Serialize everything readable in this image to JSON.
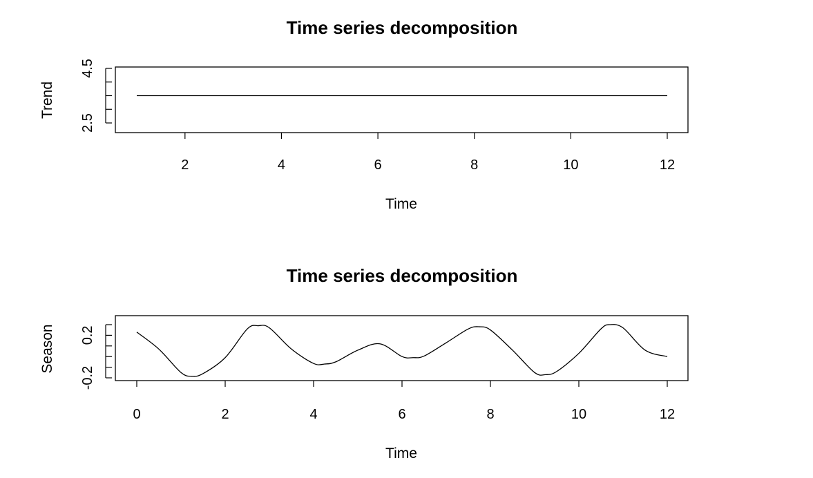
{
  "chart_data": [
    {
      "type": "line",
      "title": "Time series decomposition",
      "xlabel": "Time",
      "ylabel": "Trend",
      "xlim": [
        1,
        12
      ],
      "ylim": [
        2.0,
        5.0
      ],
      "xticks": [
        2,
        4,
        6,
        8,
        10,
        12
      ],
      "yticks": [
        2.5,
        3.0,
        3.5,
        4.0,
        4.5
      ],
      "ytick_labels": [
        "2.5",
        "",
        "",
        "",
        "4.5"
      ],
      "grid": false,
      "series": [
        {
          "x": [
            1,
            2,
            3,
            4,
            5,
            6,
            7,
            8,
            9,
            10,
            11,
            12
          ],
          "values": [
            3.5,
            3.5,
            3.5,
            3.5,
            3.5,
            3.5,
            3.5,
            3.5,
            3.5,
            3.5,
            3.5,
            3.5
          ]
        }
      ]
    },
    {
      "type": "line",
      "title": "Time series decomposition",
      "xlabel": "Time",
      "ylabel": "Season",
      "xlim": [
        0,
        12
      ],
      "ylim": [
        -0.3,
        0.3
      ],
      "xticks": [
        0,
        2,
        4,
        6,
        8,
        10,
        12
      ],
      "yticks": [
        -0.2,
        -0.1,
        0.0,
        0.1,
        0.2,
        0.3
      ],
      "ytick_labels": [
        "-0.2",
        "",
        "",
        "",
        "0.2",
        ""
      ],
      "grid": false,
      "series": [
        {
          "x": [
            0,
            0.5,
            1.0,
            1.25,
            1.5,
            2.0,
            2.5,
            2.75,
            3.0,
            3.5,
            4.0,
            4.25,
            4.5,
            5.0,
            5.5,
            6.0,
            6.25,
            6.5,
            7.0,
            7.5,
            7.75,
            8.0,
            8.5,
            9.0,
            9.25,
            9.5,
            10.0,
            10.5,
            10.7,
            11.0,
            11.5,
            12.0
          ],
          "values": [
            0.23,
            0.07,
            -0.15,
            -0.185,
            -0.16,
            -0.01,
            0.26,
            0.29,
            0.27,
            0.07,
            -0.065,
            -0.07,
            -0.05,
            0.06,
            0.12,
            0.0,
            -0.01,
            0.005,
            0.13,
            0.26,
            0.28,
            0.25,
            0.06,
            -0.15,
            -0.17,
            -0.14,
            0.03,
            0.26,
            0.3,
            0.27,
            0.06,
            0.0
          ]
        }
      ]
    }
  ]
}
